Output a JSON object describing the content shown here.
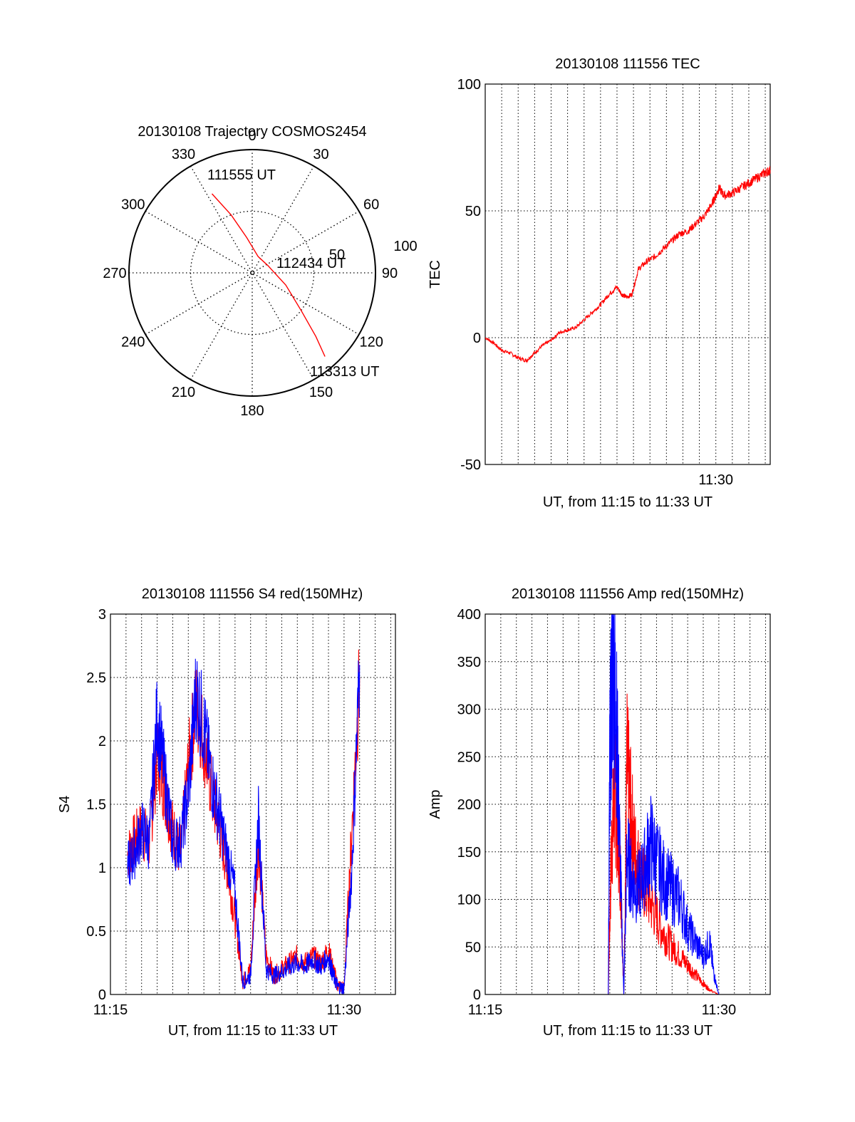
{
  "colors": {
    "red": "#ff0000",
    "blue": "#0000ff",
    "axis": "#000000",
    "background": "#ffffff"
  },
  "chart_data": [
    {
      "id": "trajectory",
      "type": "polar",
      "title": "20130108 Trajectory COSMOS2454",
      "azimuth_labels": [
        "0",
        "30",
        "60",
        "90",
        "120",
        "150",
        "180",
        "210",
        "240",
        "270",
        "300",
        "330"
      ],
      "radius_labels": [
        "50",
        "100"
      ],
      "radius_range": [
        0,
        100
      ],
      "grid": true,
      "start_label": "111555 UT",
      "mid_label": "112434 UT",
      "end_label": "113313 UT",
      "track_points": [
        {
          "az": 333,
          "r": 72
        },
        {
          "az": 340,
          "r": 50
        },
        {
          "az": 351,
          "r": 29
        },
        {
          "az": 20,
          "r": 14
        },
        {
          "az": 65,
          "r": 14
        },
        {
          "az": 110,
          "r": 29
        },
        {
          "az": 128,
          "r": 51
        },
        {
          "az": 135,
          "r": 73
        },
        {
          "az": 139,
          "r": 90
        }
      ]
    },
    {
      "id": "tec",
      "type": "line",
      "title": "20130108 111556 TEC",
      "xlabel": "UT, from 11:15 to 11:33 UT",
      "ylabel": "TEC",
      "xlim": [
        1116,
        1133.3
      ],
      "ylim": [
        -50,
        100
      ],
      "yticks": [
        "-50",
        "0",
        "50",
        "100"
      ],
      "xtick_labels": [
        {
          "at": 1130,
          "label": "11:30"
        }
      ],
      "grid": true,
      "series": [
        {
          "color": "red",
          "x": [
            1116.0,
            1116.5,
            1117.0,
            1117.5,
            1118.0,
            1118.5,
            1119.0,
            1119.5,
            1120.0,
            1120.5,
            1121.0,
            1121.5,
            1122.0,
            1122.5,
            1123.0,
            1123.5,
            1124.0,
            1124.3,
            1124.6,
            1124.9,
            1125.3,
            1125.8,
            1126.3,
            1126.8,
            1127.3,
            1127.8,
            1128.3,
            1128.8,
            1129.3,
            1129.7,
            1130.0,
            1130.2,
            1130.5,
            1131.0,
            1131.5,
            1132.0,
            1132.5,
            1133.0,
            1133.3
          ],
          "y": [
            0,
            -2,
            -5,
            -6,
            -8,
            -9,
            -6,
            -3,
            -1,
            2,
            3,
            4,
            7,
            10,
            13,
            17,
            20,
            17,
            16,
            17,
            27,
            30,
            32,
            35,
            38,
            41,
            42,
            45,
            48,
            52,
            56,
            59,
            56,
            57,
            59,
            61,
            63,
            65,
            66
          ]
        }
      ]
    },
    {
      "id": "s4",
      "type": "line",
      "title": "20130108 111556 S4 red(150MHz)",
      "xlabel": "UT, from 11:15 to 11:33 UT",
      "ylabel": "S4",
      "xlim": [
        1115,
        1133.3
      ],
      "ylim": [
        0,
        3
      ],
      "yticks": [
        "0",
        "0.5",
        "1",
        "1.5",
        "2",
        "2.5",
        "3"
      ],
      "xtick_labels": [
        {
          "at": 1115,
          "label": "11:15"
        },
        {
          "at": 1130,
          "label": "11:30"
        }
      ],
      "grid": true,
      "series": [
        {
          "color": "red",
          "x": [
            1116.1,
            1116.5,
            1117.0,
            1117.5,
            1118.0,
            1118.5,
            1119.0,
            1119.5,
            1120.0,
            1120.5,
            1121.0,
            1121.5,
            1122.0,
            1122.5,
            1123.0,
            1123.5,
            1124.0,
            1124.5,
            1125.0,
            1125.5,
            1126.0,
            1126.5,
            1127.0,
            1127.5,
            1128.0,
            1128.5,
            1129.0,
            1129.3,
            1129.6,
            1130.0,
            1130.5,
            1131.0
          ],
          "y": [
            1.1,
            1.2,
            1.3,
            1.2,
            1.9,
            1.6,
            1.3,
            1.1,
            1.8,
            2.3,
            2.0,
            1.6,
            1.3,
            1.0,
            0.6,
            0.1,
            0.2,
            1.2,
            0.3,
            0.15,
            0.2,
            0.25,
            0.3,
            0.25,
            0.3,
            0.25,
            0.35,
            0.2,
            0.07,
            0.05,
            1.3,
            2.5
          ]
        },
        {
          "color": "blue",
          "x": [
            1116.1,
            1116.5,
            1117.0,
            1117.5,
            1118.0,
            1118.5,
            1119.0,
            1119.5,
            1120.0,
            1120.5,
            1121.0,
            1121.5,
            1122.0,
            1122.5,
            1123.0,
            1123.5,
            1124.0,
            1124.5,
            1125.0,
            1125.5,
            1126.0,
            1126.5,
            1127.0,
            1127.5,
            1128.0,
            1128.5,
            1129.0,
            1129.3,
            1129.6,
            1130.0,
            1130.5,
            1131.0
          ],
          "y": [
            1.0,
            1.1,
            1.3,
            1.2,
            2.2,
            1.7,
            1.2,
            1.2,
            1.6,
            2.4,
            2.1,
            1.7,
            1.4,
            1.1,
            0.8,
            0.1,
            0.15,
            1.4,
            0.2,
            0.15,
            0.18,
            0.22,
            0.25,
            0.22,
            0.28,
            0.22,
            0.3,
            0.15,
            0.06,
            0.05,
            1.0,
            2.6
          ]
        }
      ]
    },
    {
      "id": "amp",
      "type": "line",
      "title": "20130108 111556 Amp red(150MHz)",
      "xlabel": "UT, from 11:15 to 11:33 UT",
      "ylabel": "Amp",
      "xlim": [
        1115,
        1133.3
      ],
      "ylim": [
        0,
        400
      ],
      "yticks": [
        "0",
        "50",
        "100",
        "150",
        "200",
        "250",
        "300",
        "350",
        "400"
      ],
      "xtick_labels": [
        {
          "at": 1115,
          "label": "11:15"
        },
        {
          "at": 1130,
          "label": "11:30"
        }
      ],
      "grid": true,
      "series": [
        {
          "color": "red",
          "x": [
            1116.0,
            1122.9,
            1123.1,
            1123.3,
            1123.5,
            1123.7,
            1123.9,
            1124.1,
            1124.3,
            1124.6,
            1124.9,
            1125.3,
            1125.8,
            1126.3,
            1126.8,
            1127.3,
            1127.8,
            1128.3,
            1128.8,
            1129.2,
            1129.5,
            1130.0,
            1133.3
          ],
          "y": [
            0,
            0,
            150,
            210,
            180,
            120,
            0,
            240,
            200,
            150,
            130,
            110,
            90,
            70,
            55,
            45,
            35,
            25,
            15,
            8,
            4,
            0,
            0
          ]
        },
        {
          "color": "blue",
          "x": [
            1116.0,
            1122.9,
            1123.0,
            1123.2,
            1123.4,
            1123.6,
            1123.9,
            1124.1,
            1124.4,
            1124.8,
            1125.2,
            1125.6,
            1126.0,
            1126.5,
            1127.0,
            1127.5,
            1128.0,
            1128.5,
            1129.0,
            1129.4,
            1129.7,
            1130.0,
            1133.3
          ],
          "y": [
            0,
            0,
            250,
            350,
            300,
            180,
            0,
            150,
            120,
            110,
            130,
            160,
            140,
            120,
            110,
            100,
            70,
            55,
            40,
            55,
            20,
            0,
            0
          ]
        }
      ]
    }
  ]
}
